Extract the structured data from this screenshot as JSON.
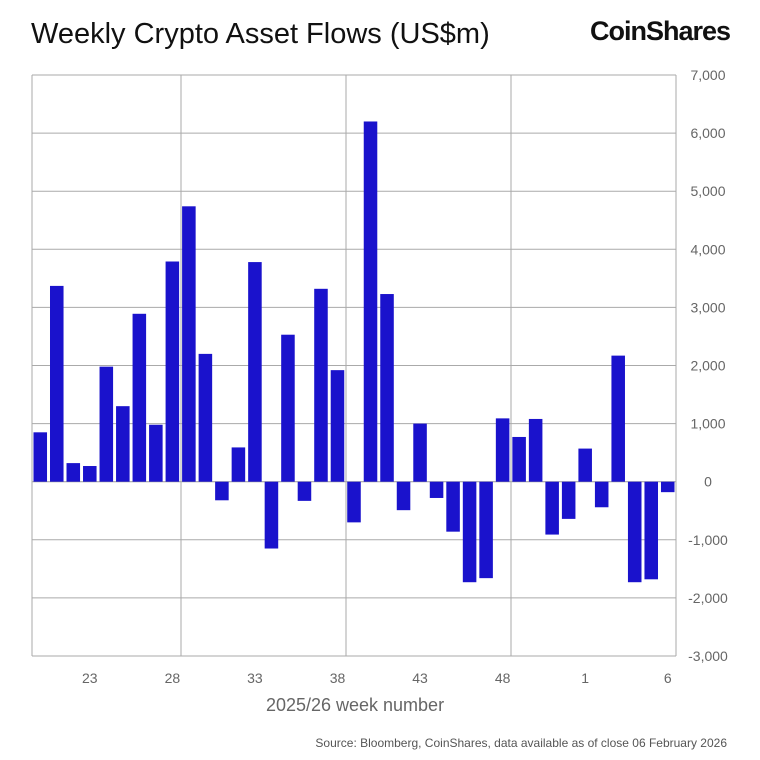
{
  "title": "Weekly Crypto Asset Flows (US$m)",
  "brand": "CoinShares",
  "source": "Source: Bloomberg, CoinShares, data available as of close 06 February 2026",
  "colors": {
    "bar": "#1a12cc",
    "grid": "#aaaaaa",
    "axis_text": "#666666"
  },
  "chart_data": {
    "type": "bar",
    "title": "Weekly Crypto Asset Flows (US$m)",
    "xlabel": "2025/26 week number",
    "ylabel": "",
    "ylim": [
      -3000,
      7000
    ],
    "yticks": [
      7000,
      6000,
      5000,
      4000,
      3000,
      2000,
      1000,
      0,
      -1000,
      -2000,
      -3000
    ],
    "ytick_labels": [
      "7,000",
      "6,000",
      "5,000",
      "4,000",
      "3,000",
      "2,000",
      "1,000",
      "0",
      "-1,000",
      "-2,000",
      "-3,000"
    ],
    "xtick_labels": [
      "23",
      "28",
      "33",
      "38",
      "43",
      "48",
      "1",
      "6"
    ],
    "y_axis_side": "right",
    "grid": true,
    "categories": [
      "20",
      "21",
      "22",
      "23",
      "24",
      "25",
      "26",
      "27",
      "28",
      "29",
      "30",
      "31",
      "32",
      "33",
      "34",
      "35",
      "36",
      "37",
      "38",
      "39",
      "40",
      "41",
      "42",
      "43",
      "44",
      "45",
      "46",
      "47",
      "48",
      "49",
      "50",
      "51",
      "52",
      "1",
      "2",
      "3",
      "4",
      "5",
      "6"
    ],
    "values": [
      850,
      3370,
      320,
      270,
      1980,
      1300,
      2890,
      980,
      3790,
      4740,
      2200,
      -320,
      590,
      3780,
      -1150,
      2530,
      -330,
      3320,
      1920,
      -700,
      6200,
      3230,
      -490,
      1000,
      -280,
      -860,
      -1730,
      -1660,
      1090,
      770,
      1080,
      -910,
      -640,
      570,
      -440,
      2170,
      -1730,
      -1680,
      -180
    ]
  }
}
